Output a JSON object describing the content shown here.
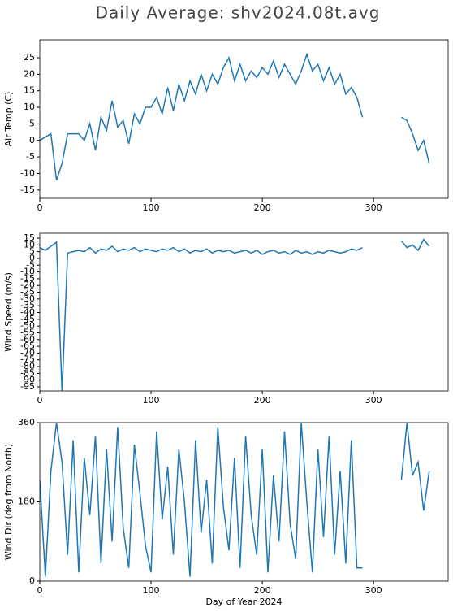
{
  "title": "Daily Average: shv2024.08t.avg",
  "chart_data": [
    {
      "type": "line",
      "ylabel": "Air Temp (C)",
      "x": [
        0,
        5,
        10,
        15,
        20,
        25,
        30,
        35,
        40,
        45,
        50,
        55,
        60,
        65,
        70,
        75,
        80,
        85,
        90,
        95,
        100,
        105,
        110,
        115,
        120,
        125,
        130,
        135,
        140,
        145,
        150,
        155,
        160,
        165,
        170,
        175,
        180,
        185,
        190,
        195,
        200,
        205,
        210,
        215,
        220,
        225,
        230,
        235,
        240,
        245,
        250,
        255,
        260,
        265,
        270,
        275,
        280,
        285,
        290,
        295,
        300,
        305,
        310,
        315,
        320,
        325,
        330,
        335,
        340,
        345,
        350
      ],
      "series": [
        {
          "name": "Air Temp",
          "color": "#1f77b4",
          "values": [
            0,
            1,
            2,
            -12,
            -7,
            2,
            2,
            2,
            0,
            5,
            -3,
            7,
            3,
            12,
            4,
            6,
            -1,
            8,
            5,
            10,
            10,
            13,
            8,
            16,
            9,
            17,
            12,
            18,
            14,
            20,
            15,
            20,
            17,
            22,
            25,
            18,
            23,
            18,
            21,
            19,
            22,
            20,
            24,
            19,
            23,
            20,
            17,
            21,
            26,
            21,
            23,
            18,
            22,
            17,
            20,
            14,
            16,
            13,
            7,
            null,
            null,
            null,
            null,
            null,
            null,
            7,
            6,
            2,
            -3,
            0,
            -7
          ]
        }
      ],
      "xlim": [
        0,
        367
      ],
      "xticks": [
        0,
        100,
        200,
        300
      ],
      "ylim": [
        -17.5,
        30.4
      ],
      "yticks": [
        -15,
        -10,
        -5,
        0,
        5,
        10,
        15,
        20,
        25
      ]
    },
    {
      "type": "line",
      "ylabel": "Wind Speed (m/s)",
      "x": [
        0,
        5,
        10,
        15,
        20,
        25,
        30,
        35,
        40,
        45,
        50,
        55,
        60,
        65,
        70,
        75,
        80,
        85,
        90,
        95,
        100,
        105,
        110,
        115,
        120,
        125,
        130,
        135,
        140,
        145,
        150,
        155,
        160,
        165,
        170,
        175,
        180,
        185,
        190,
        195,
        200,
        205,
        210,
        215,
        220,
        225,
        230,
        235,
        240,
        245,
        250,
        255,
        260,
        265,
        270,
        275,
        280,
        285,
        290,
        295,
        300,
        305,
        310,
        315,
        320,
        325,
        330,
        335,
        340,
        345,
        350
      ],
      "series": [
        {
          "name": "Wind Speed",
          "color": "#1f77b4",
          "values": [
            8,
            6,
            9,
            12,
            -99,
            4,
            5,
            6,
            5,
            8,
            4,
            7,
            6,
            9,
            5,
            7,
            6,
            8,
            5,
            7,
            6,
            5,
            7,
            6,
            8,
            5,
            7,
            4,
            6,
            5,
            7,
            4,
            6,
            5,
            6,
            4,
            5,
            6,
            4,
            6,
            3,
            5,
            6,
            4,
            5,
            3,
            6,
            4,
            5,
            3,
            5,
            4,
            6,
            5,
            4,
            5,
            7,
            6,
            8,
            null,
            null,
            null,
            null,
            null,
            null,
            13,
            8,
            10,
            6,
            14,
            9
          ]
        }
      ],
      "xlim": [
        0,
        367
      ],
      "xticks": [
        0,
        100,
        200,
        300
      ],
      "ylim": [
        -98,
        18.6
      ],
      "yticks": [
        -95,
        -90,
        -85,
        -80,
        -75,
        -70,
        -65,
        -60,
        -55,
        -50,
        -45,
        -40,
        -35,
        -30,
        -25,
        -20,
        -15,
        -10,
        -5,
        0,
        5,
        10,
        15
      ]
    },
    {
      "type": "line",
      "ylabel": "Wind Dir (deg from North)",
      "xlabel": "Day of Year 2024",
      "x": [
        0,
        5,
        10,
        15,
        20,
        25,
        30,
        35,
        40,
        45,
        50,
        55,
        60,
        65,
        70,
        75,
        80,
        85,
        90,
        95,
        100,
        105,
        110,
        115,
        120,
        125,
        130,
        135,
        140,
        145,
        150,
        155,
        160,
        165,
        170,
        175,
        180,
        185,
        190,
        195,
        200,
        205,
        210,
        215,
        220,
        225,
        230,
        235,
        240,
        245,
        250,
        255,
        260,
        265,
        270,
        275,
        280,
        285,
        290,
        295,
        300,
        305,
        310,
        315,
        320,
        325,
        330,
        335,
        340,
        345,
        350
      ],
      "series": [
        {
          "name": "Wind Dir",
          "color": "#1f77b4",
          "values": [
            230,
            10,
            250,
            360,
            270,
            60,
            320,
            20,
            280,
            150,
            330,
            40,
            300,
            90,
            350,
            120,
            30,
            310,
            200,
            80,
            20,
            340,
            140,
            260,
            60,
            300,
            180,
            10,
            320,
            110,
            230,
            40,
            350,
            170,
            70,
            280,
            30,
            330,
            150,
            60,
            300,
            20,
            240,
            90,
            340,
            130,
            50,
            360,
            180,
            20,
            300,
            100,
            330,
            60,
            250,
            40,
            320,
            30,
            30,
            null,
            null,
            null,
            null,
            null,
            null,
            230,
            360,
            240,
            270,
            160,
            250
          ]
        }
      ],
      "xlim": [
        0,
        367
      ],
      "xticks": [
        0,
        100,
        200,
        300
      ],
      "ylim": [
        0,
        360
      ],
      "yticks": [
        0,
        180,
        360
      ]
    }
  ]
}
